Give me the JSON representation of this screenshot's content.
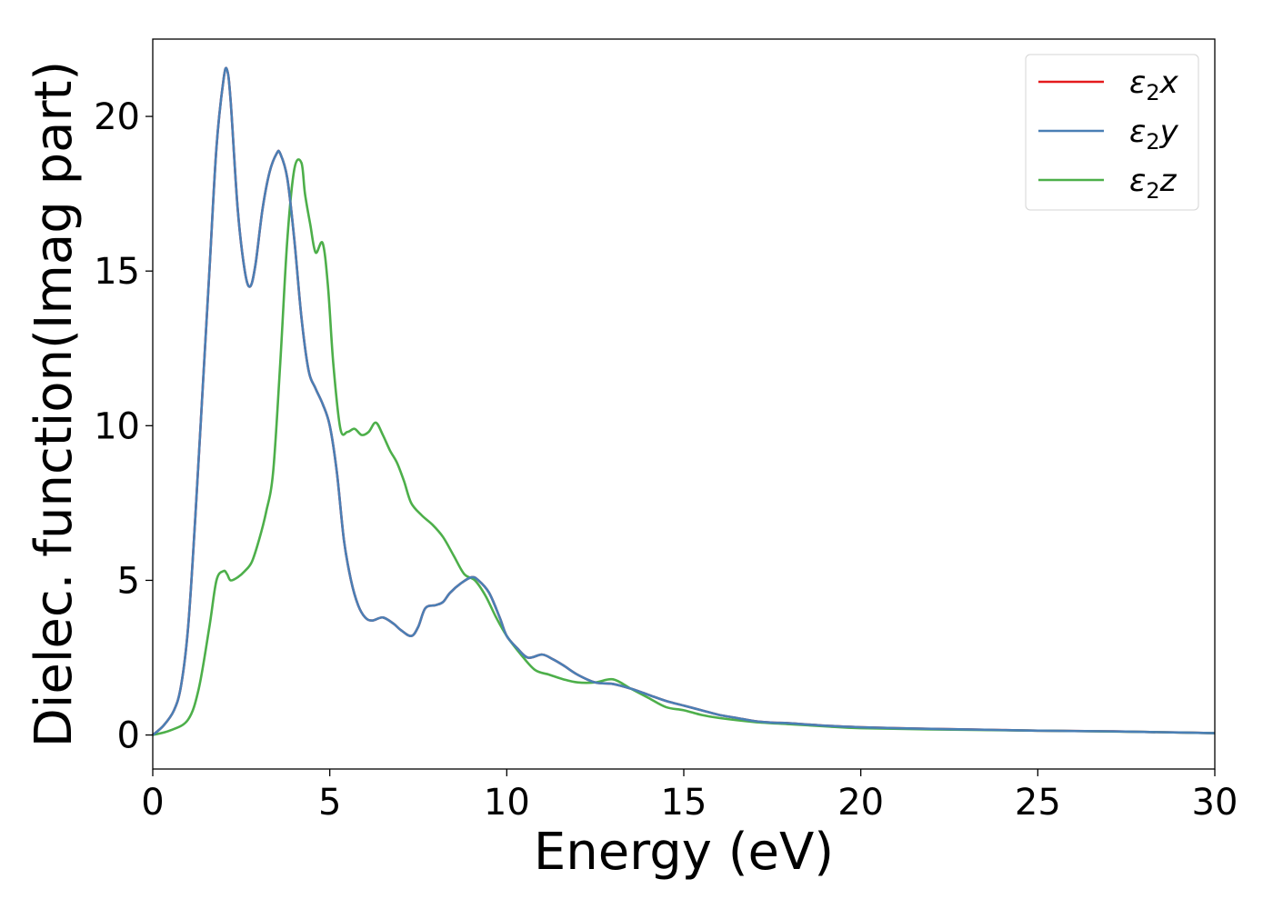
{
  "chart_data": {
    "type": "line",
    "title": "",
    "xlabel": "Energy (eV)",
    "ylabel": "Dielec. function(Imag part)",
    "xlim": [
      0,
      30
    ],
    "ylim": [
      -1.1,
      22.5
    ],
    "xticks": [
      "0",
      "5",
      "10",
      "15",
      "20",
      "25",
      "30"
    ],
    "yticks": [
      "0",
      "5",
      "10",
      "15",
      "20"
    ],
    "grid": false,
    "legend_position": "top-right",
    "series": [
      {
        "name": "ε₂x",
        "legend_main": "ε",
        "legend_sub": "2",
        "legend_suffix": "x",
        "color": "#e41a1c",
        "x": [
          0,
          0.3,
          0.6,
          0.8,
          1.0,
          1.2,
          1.4,
          1.6,
          1.8,
          2.0,
          2.1,
          2.2,
          2.4,
          2.6,
          2.75,
          2.9,
          3.1,
          3.3,
          3.5,
          3.6,
          3.8,
          4.0,
          4.2,
          4.4,
          4.6,
          4.8,
          5.0,
          5.2,
          5.4,
          5.6,
          5.8,
          6.0,
          6.2,
          6.5,
          6.8,
          7.0,
          7.3,
          7.5,
          7.7,
          8.0,
          8.2,
          8.4,
          8.7,
          9.0,
          9.2,
          9.5,
          9.8,
          10.0,
          10.3,
          10.6,
          11.0,
          11.3,
          11.6,
          12.0,
          12.5,
          13.0,
          13.5,
          14.0,
          14.5,
          15.0,
          15.5,
          16.0,
          16.5,
          17.0,
          17.5,
          18.0,
          19.0,
          20.0,
          21.0,
          22.0,
          23.0,
          24.0,
          25.0,
          26.0,
          27.0,
          28.0,
          29.0,
          30.0
        ],
        "y": [
          0,
          0.3,
          0.8,
          1.6,
          3.5,
          7,
          11,
          15,
          19,
          21.2,
          21.5,
          20.5,
          17,
          15,
          14.5,
          15.2,
          17,
          18.2,
          18.8,
          18.8,
          18,
          16,
          13.5,
          11.8,
          11.2,
          10.7,
          10.0,
          8.5,
          6.3,
          5.0,
          4.2,
          3.8,
          3.7,
          3.8,
          3.6,
          3.4,
          3.2,
          3.5,
          4.1,
          4.2,
          4.3,
          4.6,
          4.9,
          5.1,
          5.0,
          4.6,
          3.8,
          3.2,
          2.8,
          2.5,
          2.6,
          2.45,
          2.25,
          1.95,
          1.7,
          1.65,
          1.5,
          1.3,
          1.1,
          0.95,
          0.8,
          0.65,
          0.55,
          0.45,
          0.4,
          0.38,
          0.3,
          0.25,
          0.22,
          0.2,
          0.18,
          0.16,
          0.14,
          0.13,
          0.12,
          0.1,
          0.08,
          0.06
        ]
      },
      {
        "name": "ε₂y",
        "legend_main": "ε",
        "legend_sub": "2",
        "legend_suffix": "y",
        "color": "#4a7fb5",
        "x": [
          0,
          0.3,
          0.6,
          0.8,
          1.0,
          1.2,
          1.4,
          1.6,
          1.8,
          2.0,
          2.1,
          2.2,
          2.4,
          2.6,
          2.75,
          2.9,
          3.1,
          3.3,
          3.5,
          3.6,
          3.8,
          4.0,
          4.2,
          4.4,
          4.6,
          4.8,
          5.0,
          5.2,
          5.4,
          5.6,
          5.8,
          6.0,
          6.2,
          6.5,
          6.8,
          7.0,
          7.3,
          7.5,
          7.7,
          8.0,
          8.2,
          8.4,
          8.7,
          9.0,
          9.2,
          9.5,
          9.8,
          10.0,
          10.3,
          10.6,
          11.0,
          11.3,
          11.6,
          12.0,
          12.5,
          13.0,
          13.5,
          14.0,
          14.5,
          15.0,
          15.5,
          16.0,
          16.5,
          17.0,
          17.5,
          18.0,
          19.0,
          20.0,
          21.0,
          22.0,
          23.0,
          24.0,
          25.0,
          26.0,
          27.0,
          28.0,
          29.0,
          30.0
        ],
        "y": [
          0,
          0.3,
          0.8,
          1.6,
          3.5,
          7,
          11,
          15,
          19,
          21.2,
          21.5,
          20.5,
          17,
          15,
          14.5,
          15.2,
          17,
          18.2,
          18.8,
          18.8,
          18,
          16,
          13.5,
          11.8,
          11.2,
          10.7,
          10.0,
          8.5,
          6.3,
          5.0,
          4.2,
          3.8,
          3.7,
          3.8,
          3.6,
          3.4,
          3.2,
          3.5,
          4.1,
          4.2,
          4.3,
          4.6,
          4.9,
          5.1,
          5.0,
          4.6,
          3.8,
          3.2,
          2.8,
          2.5,
          2.6,
          2.45,
          2.25,
          1.95,
          1.7,
          1.65,
          1.5,
          1.3,
          1.1,
          0.95,
          0.8,
          0.65,
          0.55,
          0.45,
          0.4,
          0.38,
          0.3,
          0.25,
          0.22,
          0.2,
          0.18,
          0.16,
          0.14,
          0.13,
          0.12,
          0.1,
          0.08,
          0.06
        ]
      },
      {
        "name": "ε₂z",
        "legend_main": "ε",
        "legend_sub": "2",
        "legend_suffix": "z",
        "color": "#4daf4a",
        "x": [
          0,
          0.5,
          1.0,
          1.3,
          1.6,
          1.8,
          2.0,
          2.1,
          2.2,
          2.4,
          2.6,
          2.8,
          3.0,
          3.2,
          3.4,
          3.6,
          3.8,
          4.0,
          4.2,
          4.3,
          4.45,
          4.6,
          4.8,
          4.95,
          5.1,
          5.3,
          5.5,
          5.7,
          5.9,
          6.1,
          6.3,
          6.5,
          6.7,
          6.9,
          7.1,
          7.3,
          7.6,
          7.9,
          8.2,
          8.5,
          8.8,
          9.1,
          9.4,
          9.7,
          10.0,
          10.4,
          10.8,
          11.2,
          11.6,
          12.0,
          12.5,
          13.0,
          13.5,
          14.0,
          14.5,
          15.0,
          15.5,
          16.0,
          17.0,
          18.0,
          19.0,
          20.0,
          22.0,
          25.0,
          28.0,
          30.0
        ],
        "y": [
          0,
          0.15,
          0.5,
          1.5,
          3.5,
          5.0,
          5.3,
          5.2,
          5.0,
          5.1,
          5.3,
          5.6,
          6.3,
          7.2,
          8.5,
          12,
          16,
          18.3,
          18.5,
          17.5,
          16.5,
          15.6,
          15.9,
          14.5,
          12,
          9.9,
          9.8,
          9.9,
          9.7,
          9.8,
          10.1,
          9.7,
          9.2,
          8.8,
          8.2,
          7.5,
          7.1,
          6.8,
          6.4,
          5.8,
          5.2,
          5.0,
          4.5,
          3.8,
          3.2,
          2.6,
          2.1,
          1.95,
          1.8,
          1.7,
          1.7,
          1.8,
          1.5,
          1.2,
          0.9,
          0.8,
          0.65,
          0.55,
          0.42,
          0.35,
          0.28,
          0.22,
          0.18,
          0.14,
          0.1,
          0.06
        ]
      }
    ]
  }
}
